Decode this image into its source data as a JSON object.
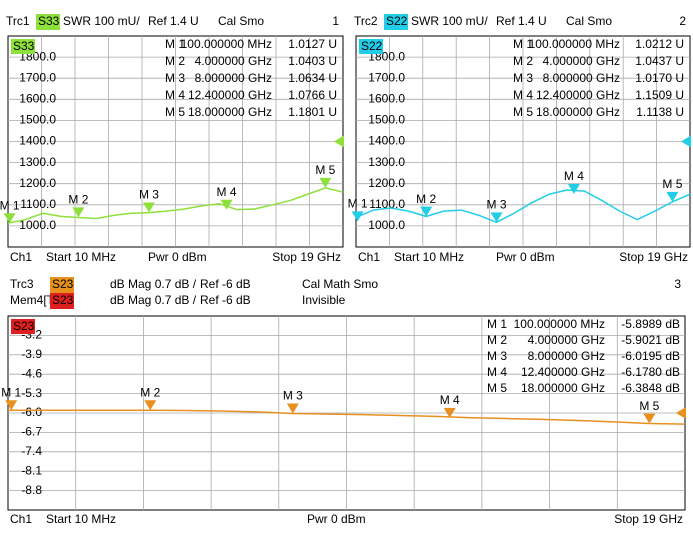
{
  "chart_data": [
    {
      "type": "line",
      "trace": "Trc1",
      "param": "S33",
      "format": "SWR  100 mU/",
      "ref_label": "Ref 1.4 U",
      "status": "Cal Smo",
      "channel_num": "1",
      "channel": "Ch1",
      "start": "Start  10 MHz",
      "power": "Pwr  0 dBm",
      "stop": "Stop  19 GHz",
      "ref": 1400,
      "xlim": [
        0.01,
        19
      ],
      "ylim": [
        900,
        1900
      ],
      "yticks": [
        {
          "value": 1000,
          "label": "1000.0"
        },
        {
          "value": 1100,
          "label": "1100.0"
        },
        {
          "value": 1200,
          "label": "1200.0"
        },
        {
          "value": 1300,
          "label": "1300.0"
        },
        {
          "value": 1400,
          "label": "1400.0"
        },
        {
          "value": 1500,
          "label": "1500.0"
        },
        {
          "value": 1600,
          "label": "1600.0"
        },
        {
          "value": 1700,
          "label": "1700.0"
        },
        {
          "value": 1800,
          "label": "1800.0"
        }
      ],
      "x": [
        0.01,
        1,
        2,
        3,
        4,
        5,
        6,
        7,
        8,
        9,
        10,
        11,
        12,
        13,
        14,
        15,
        16,
        17,
        18,
        19
      ],
      "series": [
        {
          "name": "S33",
          "color": "#8ee03a",
          "values": [
            1013,
            1030,
            1060,
            1045,
            1040,
            1035,
            1050,
            1060,
            1063,
            1070,
            1080,
            1095,
            1105,
            1077,
            1080,
            1100,
            1120,
            1150,
            1180,
            1160
          ]
        }
      ],
      "markers": {
        "names": [
          "M 1",
          "M 2",
          "M 3",
          "M 4",
          "M 5"
        ],
        "x": [
          0.1,
          4,
          8,
          12.4,
          18
        ],
        "x_labels": [
          "100.000000 MHz",
          "4.000000 GHz",
          "8.000000 GHz",
          "12.400000 GHz",
          "18.000000 GHz"
        ],
        "values": [
          1012.7,
          1040.3,
          1063.4,
          1076.6,
          1180.1
        ],
        "value_labels": [
          "1.0127  U",
          "1.0403  U",
          "1.0634  U",
          "1.0766  U",
          "1.1801  U"
        ]
      }
    },
    {
      "type": "line",
      "trace": "Trc2",
      "param": "S22",
      "format": "SWR  100 mU/",
      "ref_label": "Ref 1.4 U",
      "status": "Cal Smo",
      "channel_num": "2",
      "channel": "Ch1",
      "start": "Start  10 MHz",
      "power": "Pwr  0 dBm",
      "stop": "Stop  19 GHz",
      "ref": 1400,
      "xlim": [
        0.01,
        19
      ],
      "ylim": [
        900,
        1900
      ],
      "yticks": [
        {
          "value": 1000,
          "label": "1000.0"
        },
        {
          "value": 1100,
          "label": "1100.0"
        },
        {
          "value": 1200,
          "label": "1200.0"
        },
        {
          "value": 1300,
          "label": "1300.0"
        },
        {
          "value": 1400,
          "label": "1400.0"
        },
        {
          "value": 1500,
          "label": "1500.0"
        },
        {
          "value": 1600,
          "label": "1600.0"
        },
        {
          "value": 1700,
          "label": "1700.0"
        },
        {
          "value": 1800,
          "label": "1800.0"
        }
      ],
      "x": [
        0.01,
        1,
        2,
        3,
        4,
        5,
        6,
        7,
        8,
        9,
        10,
        11,
        12,
        13,
        14,
        15,
        16,
        17,
        18,
        19
      ],
      "series": [
        {
          "name": "S22",
          "color": "#22cde8",
          "values": [
            1040,
            1075,
            1085,
            1070,
            1045,
            1070,
            1075,
            1050,
            1017,
            1060,
            1110,
            1150,
            1170,
            1165,
            1120,
            1070,
            1030,
            1070,
            1114,
            1150
          ]
        }
      ],
      "markers": {
        "names": [
          "M 1",
          "M 2",
          "M 3",
          "M 4",
          "M 5"
        ],
        "x": [
          0.1,
          4,
          8,
          12.4,
          18
        ],
        "x_labels": [
          "100.000000 MHz",
          "4.000000 GHz",
          "8.000000 GHz",
          "12.400000 GHz",
          "18.000000 GHz"
        ],
        "values": [
          1021.2,
          1043.7,
          1017.0,
          1150.9,
          1113.8
        ],
        "value_labels": [
          "1.0212  U",
          "1.0437  U",
          "1.0170  U",
          "1.1509  U",
          "1.1138  U"
        ]
      }
    },
    {
      "type": "line",
      "trace": "Trc3",
      "param": "S23",
      "format": "dB Mag  0.7 dB /",
      "ref_label": "Ref -6 dB",
      "status": "Cal Math Smo",
      "channel_num": "3",
      "channel": "Ch1",
      "start": "Start  10 MHz",
      "power": "Pwr  0 dBm",
      "stop": "Stop  19 GHz",
      "ref": -6,
      "memory": {
        "trace": "Mem4[Trc3]",
        "param": "S23",
        "format": "dB Mag  0.7 dB /",
        "ref_label": "Ref -6 dB",
        "status": "Invisible",
        "color": "#e02020"
      },
      "xlim": [
        0.01,
        19
      ],
      "ylim": [
        -9.5,
        -2.5
      ],
      "yticks": [
        -3.2,
        -3.9,
        -4.6,
        -5.3,
        {
          "value": -6,
          "label": "-6.0"
        },
        -6.7,
        -7.4,
        -8.1,
        -8.8
      ],
      "x": [
        0.01,
        1,
        2,
        3,
        4,
        5,
        6,
        7,
        8,
        9,
        10,
        11,
        12,
        13,
        14,
        15,
        16,
        17,
        18,
        19
      ],
      "series": [
        {
          "name": "S23",
          "color": "#e8901e",
          "values": [
            -5.9,
            -5.9,
            -5.9,
            -5.9,
            -5.9,
            -5.91,
            -5.93,
            -5.96,
            -6.02,
            -6.04,
            -6.06,
            -6.09,
            -6.12,
            -6.17,
            -6.2,
            -6.23,
            -6.27,
            -6.32,
            -6.38,
            -6.4
          ]
        }
      ],
      "markers": {
        "names": [
          "M 1",
          "M 2",
          "M 3",
          "M 4",
          "M 5"
        ],
        "x": [
          0.1,
          4,
          8,
          12.4,
          18
        ],
        "x_labels": [
          "100.000000 MHz",
          "4.000000 GHz",
          "8.000000 GHz",
          "12.400000 GHz",
          "18.000000 GHz"
        ],
        "values": [
          -5.8989,
          -5.9021,
          -6.0195,
          -6.178,
          -6.3848
        ],
        "value_labels": [
          "-5.8989 dB",
          "-5.9021 dB",
          "-6.0195 dB",
          "-6.1780 dB",
          "-6.3848 dB"
        ]
      }
    }
  ]
}
